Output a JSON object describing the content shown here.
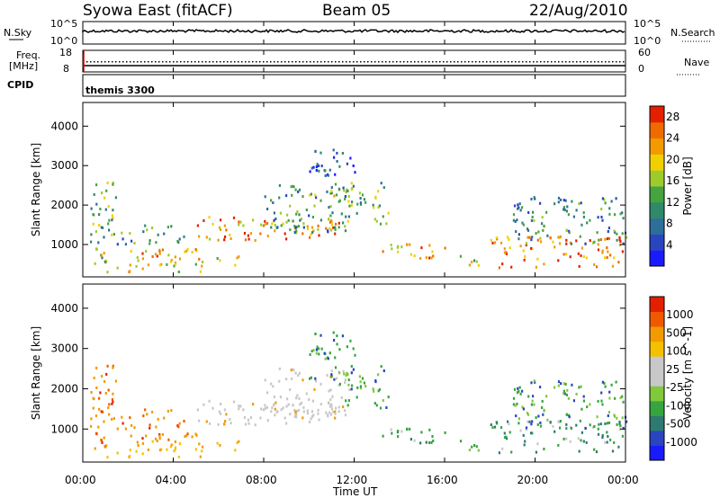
{
  "header": {
    "left": "Syowa East (fitACF)",
    "center": "Beam 05",
    "right": "22/Aug/2010"
  },
  "panels": {
    "nsky_label": "N.Sky",
    "nsearch_label": "N.Search",
    "noise_ticks_left": [
      "10^5",
      "10^0"
    ],
    "noise_ticks_right": [
      "10^5",
      "10^0"
    ],
    "freq_label_1": "Freq.",
    "freq_label_2": "[MHz]",
    "freq_ticks": [
      "18",
      "8"
    ],
    "nave_label": "Nave",
    "nave_ticks": [
      "60",
      "0"
    ],
    "cpid_label": "CPID",
    "cpid_value": "themis 3300"
  },
  "colors": {
    "power_scale": [
      "#1a1aff",
      "#2a45c0",
      "#2e6e9a",
      "#2f8a6a",
      "#45a340",
      "#9ecb2c",
      "#f0d000",
      "#f29a00",
      "#ef6b00",
      "#e41f00"
    ],
    "velocity_scale": [
      "#e41f00",
      "#ef5a00",
      "#f29a00",
      "#f4c000",
      "#c8c8c8",
      "#c8c8c8",
      "#7fc93a",
      "#35a540",
      "#2e7a6e",
      "#2a45c0",
      "#1a1aff"
    ]
  },
  "chart_data": [
    {
      "type": "heatmap",
      "quantity": "Power",
      "ylabel": "Slant Range [km]",
      "yticks": [
        "1000",
        "2000",
        "3000",
        "4000"
      ],
      "ylim": [
        180,
        4600
      ],
      "colorbar_label": "Power [dB]",
      "colorbar_ticks": [
        "4",
        "8",
        "12",
        "16",
        "20",
        "24",
        "28"
      ],
      "colorbar_range": [
        0,
        30
      ]
    },
    {
      "type": "heatmap",
      "quantity": "Velocity",
      "ylabel": "Slant Range [km]",
      "yticks": [
        "1000",
        "2000",
        "3000",
        "4000"
      ],
      "ylim": [
        180,
        4600
      ],
      "colorbar_label": "Velocity [m s^-1]",
      "colorbar_ticks": [
        "1000",
        "500",
        "100",
        "25",
        "-25",
        "-100",
        "-500",
        "-1000"
      ]
    }
  ],
  "xaxis": {
    "label": "Time UT",
    "ticks": [
      "00:00",
      "04:00",
      "08:00",
      "12:00",
      "16:00",
      "20:00",
      "00:00"
    ],
    "range_hours": [
      0,
      24
    ]
  }
}
